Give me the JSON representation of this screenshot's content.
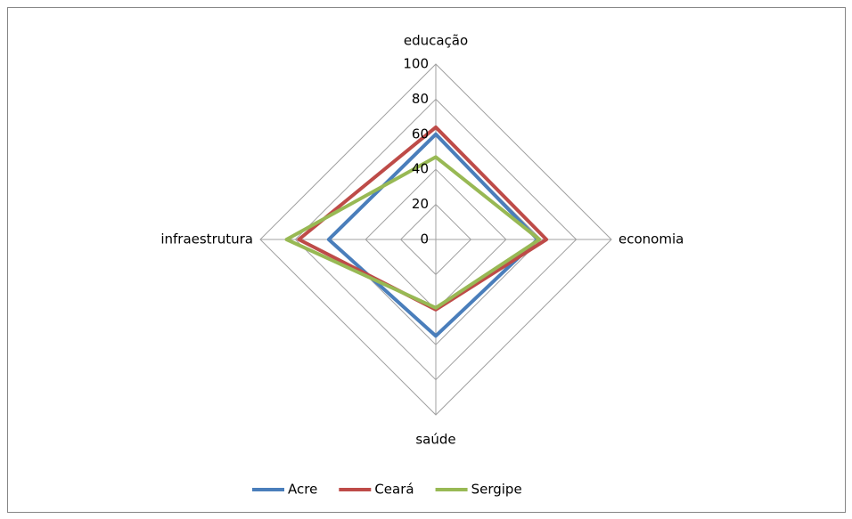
{
  "chart_data": {
    "type": "radar",
    "categories": [
      "educação",
      "economia",
      "saúde",
      "infraestrutura"
    ],
    "series": [
      {
        "name": "Acre",
        "color": "#4a7ebb",
        "values": [
          60,
          58,
          55,
          61
        ]
      },
      {
        "name": "Ceará",
        "color": "#be4b48",
        "values": [
          64,
          63,
          40,
          78
        ]
      },
      {
        "name": "Sergipe",
        "color": "#98b954",
        "values": [
          47,
          59,
          39,
          85
        ]
      }
    ],
    "ylim": [
      0,
      100
    ],
    "yticks": [
      0,
      20,
      40,
      60,
      80,
      100
    ],
    "grid": true,
    "legend": "bottom"
  }
}
